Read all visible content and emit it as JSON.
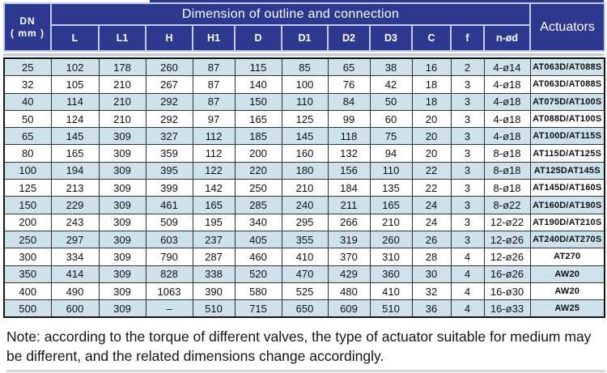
{
  "colors": {
    "header_bg": "#2d398f",
    "header_text": "#ffffff",
    "header_border": "#c4cbf0",
    "row_alt_bg": "#cee2ec",
    "row_bg": "#ffffff",
    "body_border": "#333333",
    "note_text": "#141414"
  },
  "table": {
    "dn_header": {
      "line1": "DN",
      "line2": "( mm )"
    },
    "group_header": "Dimension of outline and connection",
    "actuators_header": "Actuators",
    "columns": [
      "L",
      "L1",
      "H",
      "H1",
      "D",
      "D1",
      "D2",
      "D3",
      "C",
      "f",
      "n-ød"
    ],
    "rows": [
      {
        "dn": "25",
        "values": [
          "102",
          "178",
          "260",
          "87",
          "115",
          "85",
          "65",
          "38",
          "16",
          "2",
          "4-ø14"
        ],
        "actuator": "AT063D/AT088S"
      },
      {
        "dn": "32",
        "values": [
          "105",
          "210",
          "267",
          "87",
          "140",
          "100",
          "76",
          "42",
          "18",
          "3",
          "4-ø18"
        ],
        "actuator": "AT063D/AT088S"
      },
      {
        "dn": "40",
        "values": [
          "114",
          "210",
          "292",
          "87",
          "150",
          "110",
          "84",
          "50",
          "18",
          "3",
          "4-ø18"
        ],
        "actuator": "AT075D/AT100S"
      },
      {
        "dn": "50",
        "values": [
          "124",
          "210",
          "292",
          "97",
          "165",
          "125",
          "99",
          "60",
          "20",
          "3",
          "4-ø18"
        ],
        "actuator": "AT088D/AT100S"
      },
      {
        "dn": "65",
        "values": [
          "145",
          "309",
          "327",
          "112",
          "185",
          "145",
          "118",
          "75",
          "20",
          "3",
          "4-ø18"
        ],
        "actuator": "AT100D/AT115S"
      },
      {
        "dn": "80",
        "values": [
          "165",
          "309",
          "359",
          "112",
          "200",
          "160",
          "132",
          "94",
          "20",
          "3",
          "8-ø18"
        ],
        "actuator": "AT115D/AT125S"
      },
      {
        "dn": "100",
        "values": [
          "194",
          "309",
          "395",
          "122",
          "220",
          "180",
          "156",
          "110",
          "22",
          "3",
          "8-ø18"
        ],
        "actuator": "AT125DAT145S"
      },
      {
        "dn": "125",
        "values": [
          "213",
          "309",
          "399",
          "142",
          "250",
          "210",
          "184",
          "135",
          "22",
          "3",
          "8-ø18"
        ],
        "actuator": "AT145D/AT160S"
      },
      {
        "dn": "150",
        "values": [
          "229",
          "309",
          "461",
          "165",
          "285",
          "240",
          "211",
          "165",
          "24",
          "3",
          "8-ø22"
        ],
        "actuator": "AT160D/AT190S"
      },
      {
        "dn": "200",
        "values": [
          "243",
          "309",
          "509",
          "195",
          "340",
          "295",
          "266",
          "210",
          "24",
          "3",
          "12-ø22"
        ],
        "actuator": "AT190D/AT210S"
      },
      {
        "dn": "250",
        "values": [
          "297",
          "309",
          "603",
          "237",
          "405",
          "355",
          "319",
          "260",
          "26",
          "3",
          "12-ø26"
        ],
        "actuator": "AT240D/AT270S"
      },
      {
        "dn": "300",
        "values": [
          "334",
          "309",
          "790",
          "287",
          "460",
          "410",
          "370",
          "310",
          "28",
          "4",
          "12-ø26"
        ],
        "actuator": "AT270"
      },
      {
        "dn": "350",
        "values": [
          "414",
          "309",
          "828",
          "338",
          "520",
          "470",
          "429",
          "360",
          "30",
          "4",
          "16-ø26"
        ],
        "actuator": "AW20"
      },
      {
        "dn": "400",
        "values": [
          "490",
          "309",
          "1063",
          "390",
          "580",
          "525",
          "480",
          "410",
          "32",
          "4",
          "16-ø30"
        ],
        "actuator": "AW20"
      },
      {
        "dn": "500",
        "values": [
          "600",
          "309",
          "–",
          "510",
          "715",
          "650",
          "609",
          "510",
          "36",
          "4",
          "16-ø33"
        ],
        "actuator": "AW25"
      }
    ]
  },
  "note": {
    "line1": "Note: according to the torque of different valves, the type of actuator suitable for medium may",
    "line2": "be different, and the related dimensions change accordingly."
  }
}
